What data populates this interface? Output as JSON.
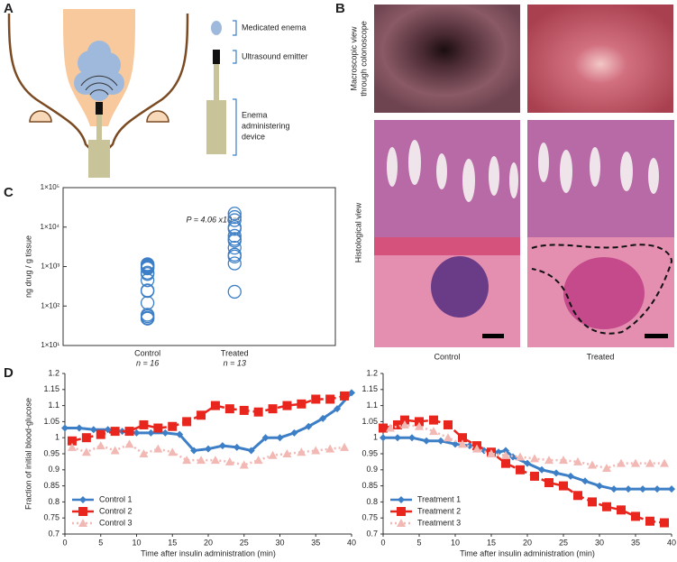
{
  "panel_labels": [
    "A",
    "B",
    "C",
    "D"
  ],
  "diagram": {
    "labels": [
      [
        "Medicated enema"
      ],
      [
        "Ultrasound emitter"
      ],
      [
        "Enema",
        "administering",
        "device"
      ]
    ]
  },
  "images": {
    "row_labels": [
      [
        "Macroscopic view",
        "through colonoscope"
      ],
      [
        "Histological view"
      ]
    ],
    "column_labels": [
      "Control",
      "Treated"
    ]
  },
  "chart_data": [
    {
      "type": "scatter",
      "y_label": "ng drug / g tissue",
      "annotation": "P = 4.06 x10⁻⁴",
      "categories": [
        "Control",
        "Treated"
      ],
      "category_notes": [
        "n = 16",
        "n = 13"
      ],
      "color": "#3d7fc6",
      "values": [
        [
          1150,
          1100,
          1050,
          1000,
          950,
          900,
          700,
          650,
          450,
          250,
          240,
          120,
          60,
          55,
          50,
          48
        ],
        [
          22000,
          18000,
          15000,
          10000,
          9000,
          6000,
          5000,
          4500,
          3000,
          2000,
          1800,
          1200,
          230
        ]
      ],
      "log_scale": true,
      "ylim": [
        10,
        100000
      ],
      "yticks": [
        {
          "value": 10,
          "label": "1×10¹"
        },
        {
          "value": 100,
          "label": "1×10²"
        },
        {
          "value": 1000,
          "label": "1×10³"
        },
        {
          "value": 10000,
          "label": "1×10⁴"
        },
        {
          "value": 100000,
          "label": "1×10⁵"
        }
      ]
    },
    {
      "type": "line",
      "y_label": "Fraction of initial blood-glucose",
      "x_label": "Time after insulin administration (min)",
      "xlim": [
        0,
        40
      ],
      "xticks": [
        0,
        5,
        10,
        15,
        20,
        25,
        30,
        35,
        40
      ],
      "ylim": [
        0.7,
        1.2
      ],
      "yticks": [
        0.7,
        0.75,
        0.8,
        0.85,
        0.9,
        0.95,
        1,
        1.05,
        1.1,
        1.15,
        1.2
      ],
      "legend": "lower left",
      "series": [
        {
          "name": "Control 1",
          "color": "#3d7fc6",
          "marker": "diamond",
          "linestyle": "solid",
          "x": [
            0,
            2,
            4,
            6,
            8,
            10,
            12,
            14,
            16,
            18,
            20,
            22,
            24,
            26,
            28,
            30,
            32,
            34,
            36,
            38,
            40
          ],
          "values": [
            1.03,
            1.03,
            1.025,
            1.025,
            1.02,
            1.015,
            1.015,
            1.015,
            1.01,
            0.96,
            0.965,
            0.975,
            0.97,
            0.96,
            1.0,
            1.0,
            1.015,
            1.035,
            1.06,
            1.09,
            1.14
          ]
        },
        {
          "name": "Control 2",
          "color": "#e8261e",
          "marker": "square",
          "linestyle": "dashed",
          "x": [
            1,
            3,
            5,
            7,
            9,
            11,
            13,
            15,
            17,
            19,
            21,
            23,
            25,
            27,
            29,
            31,
            33,
            35,
            37,
            39
          ],
          "values": [
            0.99,
            1.0,
            1.01,
            1.02,
            1.02,
            1.04,
            1.03,
            1.035,
            1.05,
            1.07,
            1.1,
            1.09,
            1.085,
            1.08,
            1.09,
            1.1,
            1.105,
            1.12,
            1.12,
            1.13
          ]
        },
        {
          "name": "Control 3",
          "color": "#f2b8b4",
          "marker": "triangle",
          "linestyle": "dotted",
          "x": [
            1,
            3,
            5,
            7,
            9,
            11,
            13,
            15,
            17,
            19,
            21,
            23,
            25,
            27,
            29,
            31,
            33,
            35,
            37,
            39
          ],
          "values": [
            0.97,
            0.955,
            0.975,
            0.96,
            0.98,
            0.95,
            0.965,
            0.955,
            0.93,
            0.93,
            0.93,
            0.925,
            0.915,
            0.93,
            0.945,
            0.95,
            0.955,
            0.96,
            0.965,
            0.97
          ]
        }
      ]
    },
    {
      "type": "line",
      "x_label": "Time after insulin administration (min)",
      "xlim": [
        0,
        40
      ],
      "xticks": [
        0,
        5,
        10,
        15,
        20,
        25,
        30,
        35,
        40
      ],
      "ylim": [
        0.7,
        1.2
      ],
      "yticks": [
        0.7,
        0.75,
        0.8,
        0.85,
        0.9,
        0.95,
        1,
        1.05,
        1.1,
        1.15,
        1.2
      ],
      "legend": "lower left",
      "series": [
        {
          "name": "Treatment 1",
          "color": "#3d7fc6",
          "marker": "diamond",
          "linestyle": "solid",
          "x": [
            0,
            2,
            4,
            6,
            8,
            10,
            12,
            14,
            16,
            17,
            18,
            20,
            22,
            24,
            26,
            28,
            30,
            32,
            34,
            36,
            38,
            40
          ],
          "values": [
            1.0,
            1.0,
            1.0,
            0.99,
            0.99,
            0.98,
            0.975,
            0.96,
            0.955,
            0.96,
            0.94,
            0.92,
            0.9,
            0.89,
            0.88,
            0.865,
            0.85,
            0.84,
            0.84,
            0.84,
            0.84,
            0.84
          ]
        },
        {
          "name": "Treatment 2",
          "color": "#e8261e",
          "marker": "square",
          "linestyle": "dashed",
          "x": [
            0,
            2,
            3,
            5,
            7,
            9,
            11,
            13,
            15,
            17,
            19,
            21,
            23,
            25,
            27,
            29,
            31,
            33,
            35,
            37,
            39
          ],
          "values": [
            1.03,
            1.04,
            1.055,
            1.05,
            1.055,
            1.04,
            1.0,
            0.975,
            0.955,
            0.92,
            0.9,
            0.88,
            0.86,
            0.85,
            0.82,
            0.8,
            0.785,
            0.775,
            0.755,
            0.74,
            0.735
          ]
        },
        {
          "name": "Treatment 3",
          "color": "#f2b8b4",
          "marker": "triangle",
          "linestyle": "dotted",
          "x": [
            1,
            3,
            5,
            7,
            9,
            11,
            13,
            15,
            17,
            19,
            21,
            23,
            25,
            27,
            29,
            31,
            33,
            35,
            37,
            39
          ],
          "values": [
            1.03,
            1.04,
            1.035,
            1.02,
            1.0,
            0.98,
            0.965,
            0.95,
            0.945,
            0.94,
            0.935,
            0.93,
            0.93,
            0.925,
            0.915,
            0.905,
            0.92,
            0.92,
            0.92,
            0.92
          ]
        }
      ]
    }
  ]
}
